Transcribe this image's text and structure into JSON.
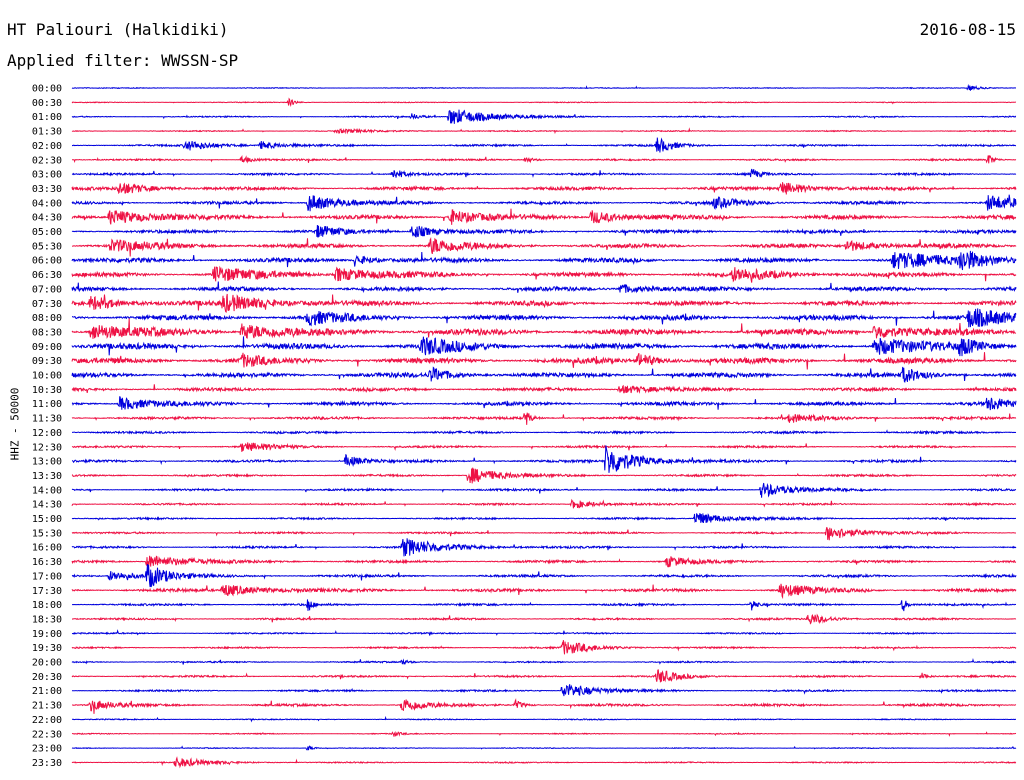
{
  "header": {
    "station": "HT Paliouri (Halkidiki)",
    "date": "2016-08-15",
    "filter": "Applied filter: WWSSN-SP"
  },
  "chart_data": {
    "type": "line",
    "title": "HT Paliouri (Halkidiki)",
    "subtitle": "Applied filter: WWSSN-SP",
    "date": "2016-08-15",
    "ylabel": "HHZ - 50000",
    "line_colors": [
      "#0000dd",
      "#ee1144"
    ],
    "x_range_minutes": [
      0,
      30
    ],
    "rows": [
      {
        "label": "00:00",
        "noise": 0.4,
        "events": [
          {
            "pos": 0.95,
            "amp": 3,
            "dur": 0.012
          }
        ]
      },
      {
        "label": "00:30",
        "noise": 0.4,
        "events": [
          {
            "pos": 0.23,
            "amp": 4,
            "dur": 0.006
          }
        ]
      },
      {
        "label": "01:00",
        "noise": 0.6,
        "events": [
          {
            "pos": 0.4,
            "amp": 9,
            "dur": 0.04
          },
          {
            "pos": 0.36,
            "amp": 3,
            "dur": 0.01
          }
        ]
      },
      {
        "label": "01:30",
        "noise": 0.5,
        "events": [
          {
            "pos": 0.28,
            "amp": 2,
            "dur": 0.04
          }
        ]
      },
      {
        "label": "02:00",
        "noise": 0.9,
        "events": [
          {
            "pos": 0.12,
            "amp": 5,
            "dur": 0.03
          },
          {
            "pos": 0.2,
            "amp": 4,
            "dur": 0.02
          },
          {
            "pos": 0.62,
            "amp": 8,
            "dur": 0.015
          }
        ]
      },
      {
        "label": "02:30",
        "noise": 0.8,
        "events": [
          {
            "pos": 0.18,
            "amp": 4,
            "dur": 0.01
          },
          {
            "pos": 0.48,
            "amp": 3,
            "dur": 0.01
          },
          {
            "pos": 0.97,
            "amp": 6,
            "dur": 0.006
          }
        ]
      },
      {
        "label": "03:00",
        "noise": 1.0,
        "events": [
          {
            "pos": 0.34,
            "amp": 6,
            "dur": 0.01
          },
          {
            "pos": 0.72,
            "amp": 5,
            "dur": 0.008
          }
        ]
      },
      {
        "label": "03:30",
        "noise": 1.6,
        "events": [
          {
            "pos": 0.05,
            "amp": 6,
            "dur": 0.03
          },
          {
            "pos": 0.75,
            "amp": 7,
            "dur": 0.03
          }
        ]
      },
      {
        "label": "04:00",
        "noise": 1.5,
        "events": [
          {
            "pos": 0.25,
            "amp": 9,
            "dur": 0.03
          },
          {
            "pos": 0.68,
            "amp": 5,
            "dur": 0.03
          },
          {
            "pos": 0.97,
            "amp": 8,
            "dur": 0.03
          }
        ]
      },
      {
        "label": "04:30",
        "noise": 2.0,
        "events": [
          {
            "pos": 0.04,
            "amp": 8,
            "dur": 0.04
          },
          {
            "pos": 0.4,
            "amp": 8,
            "dur": 0.03
          },
          {
            "pos": 0.55,
            "amp": 7,
            "dur": 0.03
          }
        ]
      },
      {
        "label": "05:00",
        "noise": 1.7,
        "events": [
          {
            "pos": 0.26,
            "amp": 6,
            "dur": 0.02
          },
          {
            "pos": 0.36,
            "amp": 8,
            "dur": 0.02
          }
        ]
      },
      {
        "label": "05:30",
        "noise": 2.0,
        "events": [
          {
            "pos": 0.04,
            "amp": 6,
            "dur": 0.04
          },
          {
            "pos": 0.38,
            "amp": 8,
            "dur": 0.03
          },
          {
            "pos": 0.82,
            "amp": 6,
            "dur": 0.03
          }
        ]
      },
      {
        "label": "06:00",
        "noise": 2.2,
        "events": [
          {
            "pos": 0.3,
            "amp": 5,
            "dur": 0.02
          },
          {
            "pos": 0.87,
            "amp": 8,
            "dur": 0.05
          },
          {
            "pos": 0.94,
            "amp": 10,
            "dur": 0.03
          }
        ]
      },
      {
        "label": "06:30",
        "noise": 2.2,
        "events": [
          {
            "pos": 0.15,
            "amp": 8,
            "dur": 0.04
          },
          {
            "pos": 0.28,
            "amp": 7,
            "dur": 0.04
          },
          {
            "pos": 0.7,
            "amp": 6,
            "dur": 0.04
          }
        ]
      },
      {
        "label": "07:00",
        "noise": 2.0,
        "events": [
          {
            "pos": 0.58,
            "amp": 5,
            "dur": 0.03
          }
        ]
      },
      {
        "label": "07:30",
        "noise": 2.3,
        "events": [
          {
            "pos": 0.02,
            "amp": 7,
            "dur": 0.03
          },
          {
            "pos": 0.16,
            "amp": 8,
            "dur": 0.05
          }
        ]
      },
      {
        "label": "08:00",
        "noise": 2.6,
        "events": [
          {
            "pos": 0.25,
            "amp": 7,
            "dur": 0.03
          },
          {
            "pos": 0.95,
            "amp": 9,
            "dur": 0.04
          }
        ]
      },
      {
        "label": "08:30",
        "noise": 3.0,
        "events": [
          {
            "pos": 0.02,
            "amp": 8,
            "dur": 0.04
          },
          {
            "pos": 0.18,
            "amp": 8,
            "dur": 0.04
          },
          {
            "pos": 0.85,
            "amp": 8,
            "dur": 0.03
          }
        ]
      },
      {
        "label": "09:00",
        "noise": 3.0,
        "events": [
          {
            "pos": 0.37,
            "amp": 9,
            "dur": 0.03
          },
          {
            "pos": 0.85,
            "amp": 9,
            "dur": 0.04
          },
          {
            "pos": 0.94,
            "amp": 8,
            "dur": 0.02
          }
        ]
      },
      {
        "label": "09:30",
        "noise": 2.8,
        "events": [
          {
            "pos": 0.6,
            "amp": 7,
            "dur": 0.02
          },
          {
            "pos": 0.18,
            "amp": 6,
            "dur": 0.02
          }
        ]
      },
      {
        "label": "10:00",
        "noise": 2.3,
        "events": [
          {
            "pos": 0.38,
            "amp": 7,
            "dur": 0.02
          },
          {
            "pos": 0.88,
            "amp": 7,
            "dur": 0.02
          }
        ]
      },
      {
        "label": "10:30",
        "noise": 1.6,
        "events": [
          {
            "pos": 0.58,
            "amp": 5,
            "dur": 0.03
          }
        ]
      },
      {
        "label": "11:00",
        "noise": 1.8,
        "events": [
          {
            "pos": 0.05,
            "amp": 7,
            "dur": 0.03
          },
          {
            "pos": 0.97,
            "amp": 7,
            "dur": 0.02
          }
        ]
      },
      {
        "label": "11:30",
        "noise": 1.3,
        "events": [
          {
            "pos": 0.48,
            "amp": 9,
            "dur": 0.005
          },
          {
            "pos": 0.76,
            "amp": 4,
            "dur": 0.03
          }
        ]
      },
      {
        "label": "12:00",
        "noise": 1.1,
        "events": []
      },
      {
        "label": "12:30",
        "noise": 1.0,
        "events": [
          {
            "pos": 0.18,
            "amp": 5,
            "dur": 0.03
          }
        ]
      },
      {
        "label": "13:00",
        "noise": 1.2,
        "events": [
          {
            "pos": 0.29,
            "amp": 6,
            "dur": 0.02
          },
          {
            "pos": 0.565,
            "amp": 16,
            "dur": 0.03
          }
        ]
      },
      {
        "label": "13:30",
        "noise": 1.0,
        "events": [
          {
            "pos": 0.42,
            "amp": 9,
            "dur": 0.03
          }
        ]
      },
      {
        "label": "14:00",
        "noise": 1.0,
        "events": [
          {
            "pos": 0.73,
            "amp": 8,
            "dur": 0.03
          }
        ]
      },
      {
        "label": "14:30",
        "noise": 0.9,
        "events": [
          {
            "pos": 0.53,
            "amp": 5,
            "dur": 0.02
          }
        ]
      },
      {
        "label": "15:00",
        "noise": 0.9,
        "events": [
          {
            "pos": 0.66,
            "amp": 7,
            "dur": 0.03
          }
        ]
      },
      {
        "label": "15:30",
        "noise": 0.9,
        "events": [
          {
            "pos": 0.8,
            "amp": 8,
            "dur": 0.03
          }
        ]
      },
      {
        "label": "16:00",
        "noise": 1.0,
        "events": [
          {
            "pos": 0.35,
            "amp": 9,
            "dur": 0.04
          }
        ]
      },
      {
        "label": "16:30",
        "noise": 1.2,
        "events": [
          {
            "pos": 0.08,
            "amp": 7,
            "dur": 0.04
          },
          {
            "pos": 0.63,
            "amp": 6,
            "dur": 0.02
          }
        ]
      },
      {
        "label": "17:00",
        "noise": 1.2,
        "events": [
          {
            "pos": 0.08,
            "amp": 12,
            "dur": 0.02
          },
          {
            "pos": 0.04,
            "amp": 5,
            "dur": 0.03
          }
        ]
      },
      {
        "label": "17:30",
        "noise": 1.5,
        "events": [
          {
            "pos": 0.16,
            "amp": 6,
            "dur": 0.04
          },
          {
            "pos": 0.75,
            "amp": 7,
            "dur": 0.03
          }
        ]
      },
      {
        "label": "18:00",
        "noise": 1.0,
        "events": [
          {
            "pos": 0.25,
            "amp": 8,
            "dur": 0.004
          },
          {
            "pos": 0.72,
            "amp": 7,
            "dur": 0.004
          },
          {
            "pos": 0.88,
            "amp": 8,
            "dur": 0.004
          }
        ]
      },
      {
        "label": "18:30",
        "noise": 0.9,
        "events": [
          {
            "pos": 0.78,
            "amp": 6,
            "dur": 0.02
          }
        ]
      },
      {
        "label": "19:00",
        "noise": 0.7,
        "events": []
      },
      {
        "label": "19:30",
        "noise": 0.8,
        "events": [
          {
            "pos": 0.52,
            "amp": 7,
            "dur": 0.03
          }
        ]
      },
      {
        "label": "20:00",
        "noise": 0.7,
        "events": [
          {
            "pos": 0.35,
            "amp": 3,
            "dur": 0.006
          }
        ]
      },
      {
        "label": "20:30",
        "noise": 0.9,
        "events": [
          {
            "pos": 0.62,
            "amp": 7,
            "dur": 0.02
          },
          {
            "pos": 0.9,
            "amp": 4,
            "dur": 0.006
          }
        ]
      },
      {
        "label": "21:00",
        "noise": 0.9,
        "events": [
          {
            "pos": 0.52,
            "amp": 8,
            "dur": 0.03
          }
        ]
      },
      {
        "label": "21:30",
        "noise": 1.2,
        "events": [
          {
            "pos": 0.02,
            "amp": 6,
            "dur": 0.02
          },
          {
            "pos": 0.35,
            "amp": 8,
            "dur": 0.02
          },
          {
            "pos": 0.47,
            "amp": 5,
            "dur": 0.008
          }
        ]
      },
      {
        "label": "22:00",
        "noise": 0.5,
        "events": []
      },
      {
        "label": "22:30",
        "noise": 0.5,
        "events": [
          {
            "pos": 0.34,
            "amp": 3,
            "dur": 0.006
          }
        ]
      },
      {
        "label": "23:00",
        "noise": 0.4,
        "events": [
          {
            "pos": 0.25,
            "amp": 3,
            "dur": 0.006
          }
        ]
      },
      {
        "label": "23:30",
        "noise": 0.6,
        "events": [
          {
            "pos": 0.11,
            "amp": 5,
            "dur": 0.03
          }
        ]
      }
    ]
  }
}
